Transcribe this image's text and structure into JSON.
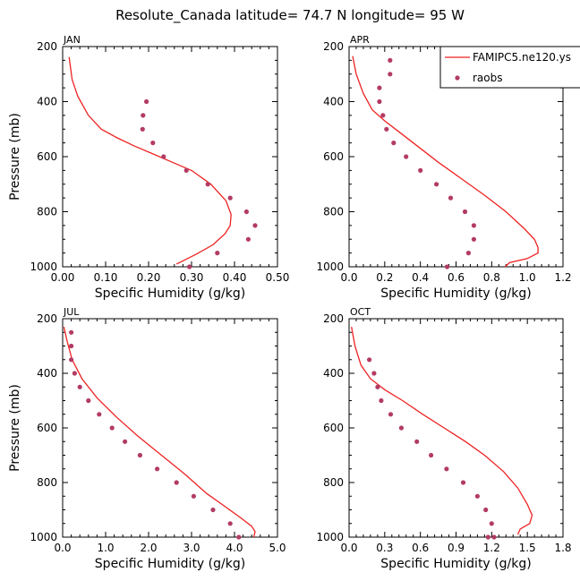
{
  "figure": {
    "title": "Resolute_Canada   latitude= 74.7 N longitude= 95 W"
  },
  "legend": {
    "model_label": "FAMIPC5.ne120.ys",
    "obs_label": "raobs",
    "model_color": "#ee2222",
    "obs_color": "#b33b63"
  },
  "chart_data": [
    {
      "type": "line",
      "panel": "JAN",
      "xlabel": "Specific Humidity (g/kg)",
      "ylabel": "Pressure (mb)",
      "xlim": [
        0.0,
        0.5
      ],
      "ylim": [
        1000,
        200
      ],
      "xticks": [
        "0.00",
        "0.10",
        "0.20",
        "0.30",
        "0.40",
        "0.50"
      ],
      "yticks": [
        "200",
        "400",
        "600",
        "800",
        "1000"
      ],
      "series": [
        {
          "name": "FAMIPC5.ne120.ys",
          "kind": "line",
          "x": [
            0.015,
            0.022,
            0.035,
            0.06,
            0.09,
            0.125,
            0.165,
            0.21,
            0.255,
            0.3,
            0.345,
            0.38,
            0.392,
            0.39,
            0.378,
            0.35,
            0.31,
            0.265
          ],
          "y": [
            238,
            320,
            380,
            450,
            500,
            530,
            560,
            590,
            620,
            650,
            700,
            760,
            810,
            850,
            880,
            920,
            955,
            990
          ]
        },
        {
          "name": "raobs",
          "kind": "scatter",
          "x": [
            0.195,
            0.187,
            0.186,
            0.21,
            0.235,
            0.288,
            0.338,
            0.39,
            0.428,
            0.448,
            0.432,
            0.36,
            0.295
          ],
          "y": [
            400,
            450,
            500,
            550,
            600,
            650,
            700,
            750,
            800,
            850,
            900,
            950,
            1000
          ]
        }
      ]
    },
    {
      "type": "line",
      "panel": "APR",
      "xlabel": "Specific Humidity (g/kg)",
      "ylabel": "",
      "xlim": [
        0.0,
        1.2
      ],
      "ylim": [
        1000,
        200
      ],
      "xticks": [
        "0.0",
        "0.2",
        "0.4",
        "0.6",
        "0.8",
        "1.0",
        "1.2"
      ],
      "yticks": [
        "200",
        "400",
        "600",
        "800",
        "1000"
      ],
      "series": [
        {
          "name": "FAMIPC5.ne120.ys",
          "kind": "line",
          "x": [
            0.02,
            0.04,
            0.08,
            0.13,
            0.2,
            0.28,
            0.38,
            0.5,
            0.63,
            0.76,
            0.88,
            0.98,
            1.04,
            1.06,
            1.06,
            1.0,
            0.9,
            0.875
          ],
          "y": [
            235,
            300,
            370,
            430,
            470,
            510,
            560,
            620,
            680,
            740,
            800,
            860,
            900,
            930,
            950,
            970,
            985,
            1000
          ]
        },
        {
          "name": "raobs",
          "kind": "scatter",
          "x": [
            0.23,
            0.23,
            0.17,
            0.17,
            0.19,
            0.21,
            0.25,
            0.32,
            0.4,
            0.49,
            0.57,
            0.65,
            0.7,
            0.7,
            0.67,
            0.55
          ],
          "y": [
            250,
            300,
            350,
            400,
            450,
            500,
            550,
            600,
            650,
            700,
            750,
            800,
            850,
            900,
            950,
            1000
          ]
        }
      ]
    },
    {
      "type": "line",
      "panel": "JUL",
      "xlabel": "Specific Humidity (g/kg)",
      "ylabel": "Pressure (mb)",
      "xlim": [
        0.0,
        5.0
      ],
      "ylim": [
        1000,
        200
      ],
      "xticks": [
        "0.0",
        "1.0",
        "2.0",
        "3.0",
        "4.0",
        "5.0"
      ],
      "yticks": [
        "200",
        "400",
        "600",
        "800",
        "1000"
      ],
      "series": [
        {
          "name": "FAMIPC5.ne120.ys",
          "kind": "line",
          "x": [
            0.03,
            0.1,
            0.22,
            0.45,
            0.8,
            1.25,
            1.75,
            2.3,
            2.85,
            3.35,
            3.8,
            4.15,
            4.4,
            4.48,
            4.45
          ],
          "y": [
            230,
            280,
            350,
            420,
            490,
            560,
            630,
            700,
            770,
            840,
            890,
            930,
            960,
            980,
            1000
          ]
        },
        {
          "name": "raobs",
          "kind": "scatter",
          "x": [
            0.2,
            0.2,
            0.2,
            0.28,
            0.4,
            0.6,
            0.85,
            1.15,
            1.45,
            1.8,
            2.2,
            2.65,
            3.05,
            3.5,
            3.9,
            4.1
          ],
          "y": [
            250,
            300,
            350,
            400,
            450,
            500,
            550,
            600,
            650,
            700,
            750,
            800,
            850,
            900,
            950,
            1000
          ]
        }
      ]
    },
    {
      "type": "line",
      "panel": "OCT",
      "xlabel": "Specific Humidity (g/kg)",
      "ylabel": "",
      "xlim": [
        0.0,
        1.8
      ],
      "ylim": [
        1000,
        200
      ],
      "xticks": [
        "0.0",
        "0.3",
        "0.6",
        "0.9",
        "1.2",
        "1.5",
        "1.8"
      ],
      "yticks": [
        "200",
        "400",
        "600",
        "800",
        "1000"
      ],
      "series": [
        {
          "name": "FAMIPC5.ne120.ys",
          "kind": "line",
          "x": [
            0.02,
            0.05,
            0.1,
            0.18,
            0.3,
            0.45,
            0.62,
            0.8,
            0.98,
            1.14,
            1.3,
            1.42,
            1.5,
            1.54,
            1.52,
            1.44,
            1.42
          ],
          "y": [
            230,
            300,
            370,
            420,
            460,
            500,
            550,
            600,
            650,
            700,
            760,
            820,
            880,
            920,
            950,
            970,
            990
          ]
        },
        {
          "name": "raobs",
          "kind": "scatter",
          "x": [
            0.17,
            0.21,
            0.24,
            0.27,
            0.35,
            0.44,
            0.57,
            0.69,
            0.82,
            0.96,
            1.08,
            1.15,
            1.2,
            1.22,
            1.17
          ],
          "y": [
            350,
            400,
            450,
            500,
            550,
            600,
            650,
            700,
            750,
            800,
            850,
            900,
            950,
            1000,
            1000
          ]
        }
      ]
    }
  ]
}
